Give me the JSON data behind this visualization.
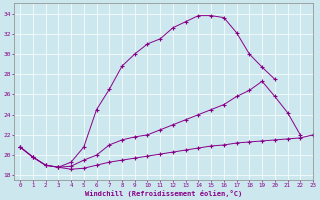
{
  "xlabel": "Windchill (Refroidissement éolien,°C)",
  "background_color": "#cce8ee",
  "line_color": "#880088",
  "x_values": [
    0,
    1,
    2,
    3,
    4,
    5,
    6,
    7,
    8,
    9,
    10,
    11,
    12,
    13,
    14,
    15,
    16,
    17,
    18,
    19,
    20,
    21,
    22,
    23
  ],
  "series1": [
    20.8,
    19.8,
    19.0,
    18.8,
    18.6,
    18.7,
    19.0,
    19.3,
    19.5,
    19.7,
    19.9,
    20.1,
    20.3,
    20.5,
    20.7,
    20.9,
    21.0,
    21.2,
    21.3,
    21.4,
    21.5,
    21.6,
    21.7,
    22.0
  ],
  "series2": [
    20.8,
    19.8,
    19.0,
    18.8,
    19.3,
    20.8,
    24.5,
    26.5,
    28.8,
    30.0,
    31.0,
    31.5,
    32.6,
    33.2,
    33.8,
    33.8,
    33.6,
    32.1,
    30.0,
    28.7,
    27.5,
    null,
    null,
    null
  ],
  "series3": [
    20.8,
    19.8,
    19.0,
    18.8,
    18.9,
    19.5,
    20.0,
    21.0,
    21.5,
    21.8,
    22.0,
    22.5,
    23.0,
    23.5,
    24.0,
    24.5,
    25.0,
    25.8,
    26.4,
    27.3,
    25.8,
    24.2,
    22.0,
    null
  ],
  "ylim": [
    17.5,
    35
  ],
  "xlim": [
    -0.5,
    23
  ],
  "yticks": [
    18,
    20,
    22,
    24,
    26,
    28,
    30,
    32,
    34
  ],
  "xticks": [
    0,
    1,
    2,
    3,
    4,
    5,
    6,
    7,
    8,
    9,
    10,
    11,
    12,
    13,
    14,
    15,
    16,
    17,
    18,
    19,
    20,
    21,
    22,
    23
  ]
}
